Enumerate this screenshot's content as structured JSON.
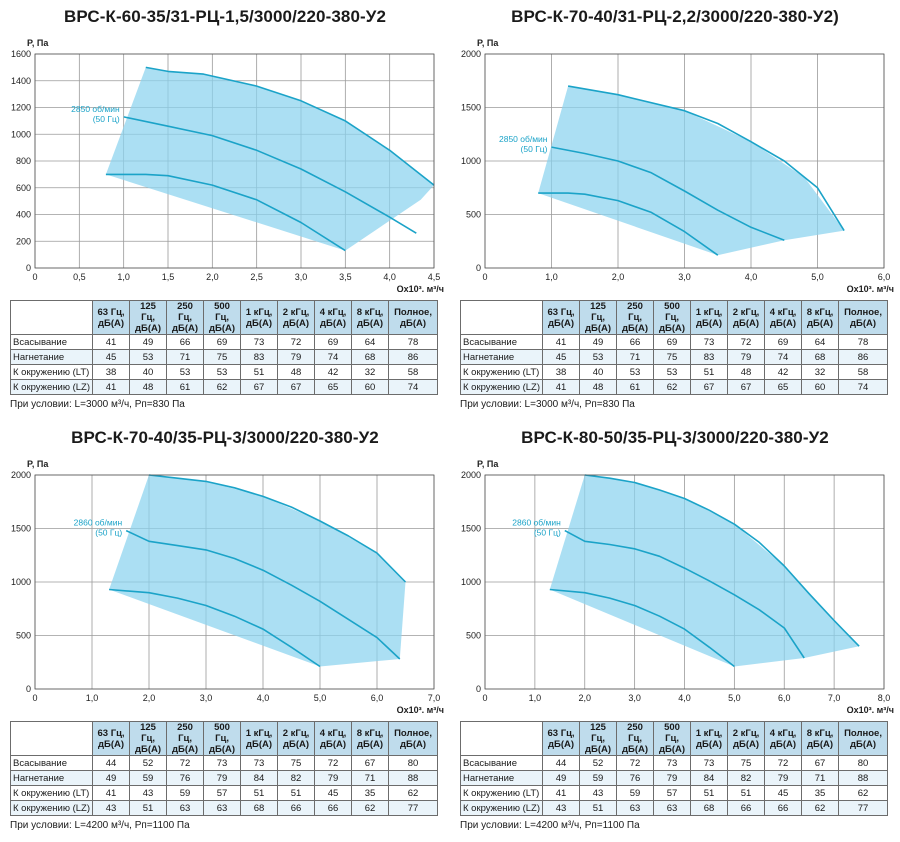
{
  "colors": {
    "area": "#8ad3ee",
    "curve": "#1ba3c8",
    "grid": "#9a9a9a",
    "header": "#bfdcec"
  },
  "table_columns": [
    "63 Гц, дБ(А)",
    "125 Гц, дБ(А)",
    "250 Гц, дБ(А)",
    "500 Гц, дБ(А)",
    "1 кГц, дБ(А)",
    "2 кГц, дБ(А)",
    "4 кГц, дБ(А)",
    "8 кГц, дБ(А)",
    "Полное, дБ(А)"
  ],
  "table_rows": [
    "Всасывание",
    "Нагнетание",
    "К окружению (LT)",
    "К окружению (LZ)"
  ],
  "chart_data": [
    {
      "type": "line",
      "title": "ВРС-К-60-35/31-РЦ-1,5/3000/220-380-У2",
      "ylabel": "P, Па",
      "xlabel": "Qx10³, м³/ч",
      "xlim": [
        0,
        4.5
      ],
      "ylim": [
        0,
        1600
      ],
      "xticks": [
        "0",
        "0,5",
        "1,0",
        "1,5",
        "2,0",
        "2,5",
        "3,0",
        "3,5",
        "4,0",
        "4,5"
      ],
      "yticks": [
        "0",
        "200",
        "400",
        "600",
        "800",
        "1000",
        "1200",
        "1400",
        "1600"
      ],
      "speed_label": [
        "2850 об/мин",
        "(50 Гц)"
      ],
      "grid": true,
      "region": [
        [
          0.8,
          700
        ],
        [
          1.25,
          1500
        ],
        [
          1.5,
          1470
        ],
        [
          1.9,
          1450
        ],
        [
          2.5,
          1360
        ],
        [
          3.0,
          1250
        ],
        [
          3.5,
          1100
        ],
        [
          4.0,
          880
        ],
        [
          4.5,
          620
        ],
        [
          4.35,
          510
        ],
        [
          3.5,
          130
        ]
      ],
      "series": [
        {
          "points": [
            [
              1.25,
              1500
            ],
            [
              1.5,
              1470
            ],
            [
              1.9,
              1450
            ],
            [
              2.5,
              1360
            ],
            [
              3.0,
              1250
            ],
            [
              3.5,
              1100
            ],
            [
              4.0,
              880
            ],
            [
              4.5,
              620
            ]
          ]
        },
        {
          "points": [
            [
              1.0,
              1130
            ],
            [
              1.5,
              1060
            ],
            [
              2.0,
              990
            ],
            [
              2.5,
              880
            ],
            [
              3.0,
              740
            ],
            [
              3.5,
              570
            ],
            [
              4.0,
              380
            ],
            [
              4.3,
              260
            ]
          ]
        },
        {
          "points": [
            [
              0.8,
              700
            ],
            [
              1.25,
              700
            ],
            [
              1.5,
              690
            ],
            [
              2.0,
              620
            ],
            [
              2.5,
              510
            ],
            [
              3.0,
              340
            ],
            [
              3.5,
              130
            ]
          ]
        }
      ],
      "table": [
        [
          "41",
          "49",
          "66",
          "69",
          "73",
          "72",
          "69",
          "64",
          "78"
        ],
        [
          "45",
          "53",
          "71",
          "75",
          "83",
          "79",
          "74",
          "68",
          "86"
        ],
        [
          "38",
          "40",
          "53",
          "53",
          "51",
          "48",
          "42",
          "32",
          "58"
        ],
        [
          "41",
          "48",
          "61",
          "62",
          "67",
          "67",
          "65",
          "60",
          "74"
        ]
      ],
      "condition": "При условии: L=3000 м³/ч, Рп=830 Па"
    },
    {
      "type": "line",
      "title": "ВРС-К-70-40/31-РЦ-2,2/3000/220-380-У2)",
      "ylabel": "P, Па",
      "xlabel": "Qx10³, м³/ч",
      "xlim": [
        0,
        6.0
      ],
      "ylim": [
        0,
        2000
      ],
      "xticks": [
        "0",
        "1,0",
        "2,0",
        "3,0",
        "4,0",
        "5,0",
        "6,0"
      ],
      "yticks": [
        "0",
        "500",
        "1000",
        "1500",
        "2000"
      ],
      "speed_label": [
        "2850 об/мин",
        "(50 Гц)"
      ],
      "grid": true,
      "region": [
        [
          0.8,
          700
        ],
        [
          1.25,
          1700
        ],
        [
          2.0,
          1620
        ],
        [
          3.0,
          1470
        ],
        [
          4.0,
          1180
        ],
        [
          4.8,
          850
        ],
        [
          5.4,
          350
        ],
        [
          4.5,
          260
        ],
        [
          3.5,
          120
        ]
      ],
      "series": [
        {
          "points": [
            [
              1.25,
              1700
            ],
            [
              2.0,
              1620
            ],
            [
              3.0,
              1470
            ],
            [
              3.5,
              1350
            ],
            [
              4.0,
              1180
            ],
            [
              4.5,
              1000
            ],
            [
              5.0,
              750
            ],
            [
              5.4,
              350
            ]
          ]
        },
        {
          "points": [
            [
              1.0,
              1130
            ],
            [
              1.5,
              1070
            ],
            [
              2.0,
              1000
            ],
            [
              2.5,
              890
            ],
            [
              3.0,
              720
            ],
            [
              3.5,
              540
            ],
            [
              4.0,
              380
            ],
            [
              4.5,
              260
            ]
          ]
        },
        {
          "points": [
            [
              0.8,
              700
            ],
            [
              1.25,
              700
            ],
            [
              1.5,
              690
            ],
            [
              2.0,
              630
            ],
            [
              2.5,
              520
            ],
            [
              3.0,
              340
            ],
            [
              3.5,
              120
            ]
          ]
        }
      ],
      "table": [
        [
          "41",
          "49",
          "66",
          "69",
          "73",
          "72",
          "69",
          "64",
          "78"
        ],
        [
          "45",
          "53",
          "71",
          "75",
          "83",
          "79",
          "74",
          "68",
          "86"
        ],
        [
          "38",
          "40",
          "53",
          "53",
          "51",
          "48",
          "42",
          "32",
          "58"
        ],
        [
          "41",
          "48",
          "61",
          "62",
          "67",
          "67",
          "65",
          "60",
          "74"
        ]
      ],
      "condition": "При условии: L=3000 м³/ч, Рп=830 Па"
    },
    {
      "type": "line",
      "title": "ВРС-К-70-40/35-РЦ-3/3000/220-380-У2",
      "ylabel": "P, Па",
      "xlabel": "Qx10³, м³/ч",
      "xlim": [
        0,
        7.0
      ],
      "ylim": [
        0,
        2000
      ],
      "xticks": [
        "0",
        "1,0",
        "2,0",
        "3,0",
        "4,0",
        "5,0",
        "6,0",
        "7,0"
      ],
      "yticks": [
        "0",
        "500",
        "1000",
        "1500",
        "2000"
      ],
      "speed_label": [
        "2860 об/мин",
        "(50 Гц)"
      ],
      "grid": true,
      "region": [
        [
          1.3,
          930
        ],
        [
          2.0,
          2000
        ],
        [
          3.0,
          1940
        ],
        [
          4.0,
          1800
        ],
        [
          5.0,
          1570
        ],
        [
          6.0,
          1270
        ],
        [
          6.5,
          1000
        ],
        [
          6.4,
          280
        ],
        [
          5.0,
          210
        ]
      ],
      "series": [
        {
          "points": [
            [
              2.0,
              2000
            ],
            [
              2.5,
              1970
            ],
            [
              3.0,
              1940
            ],
            [
              3.5,
              1880
            ],
            [
              4.0,
              1800
            ],
            [
              4.5,
              1700
            ],
            [
              5.0,
              1570
            ],
            [
              5.5,
              1430
            ],
            [
              6.0,
              1270
            ],
            [
              6.5,
              1000
            ]
          ]
        },
        {
          "points": [
            [
              1.6,
              1480
            ],
            [
              2.0,
              1380
            ],
            [
              2.5,
              1340
            ],
            [
              3.0,
              1300
            ],
            [
              3.5,
              1220
            ],
            [
              4.0,
              1110
            ],
            [
              4.5,
              970
            ],
            [
              5.0,
              820
            ],
            [
              5.5,
              650
            ],
            [
              6.0,
              480
            ],
            [
              6.4,
              280
            ]
          ]
        },
        {
          "points": [
            [
              1.3,
              930
            ],
            [
              2.0,
              900
            ],
            [
              2.5,
              850
            ],
            [
              3.0,
              780
            ],
            [
              3.5,
              680
            ],
            [
              4.0,
              560
            ],
            [
              4.5,
              390
            ],
            [
              5.0,
              210
            ]
          ]
        }
      ],
      "table": [
        [
          "44",
          "52",
          "72",
          "73",
          "73",
          "75",
          "72",
          "67",
          "80"
        ],
        [
          "49",
          "59",
          "76",
          "79",
          "84",
          "82",
          "79",
          "71",
          "88"
        ],
        [
          "41",
          "43",
          "59",
          "57",
          "51",
          "51",
          "45",
          "35",
          "62"
        ],
        [
          "43",
          "51",
          "63",
          "63",
          "68",
          "66",
          "66",
          "62",
          "77"
        ]
      ],
      "condition": "При условии: L=4200 м³/ч, Рп=1100 Па"
    },
    {
      "type": "line",
      "title": "ВРС-К-80-50/35-РЦ-3/3000/220-380-У2",
      "ylabel": "P, Па",
      "xlabel": "Qx10³, м³/ч",
      "xlim": [
        0,
        8.0
      ],
      "ylim": [
        0,
        2000
      ],
      "xticks": [
        "0",
        "1,0",
        "2,0",
        "3,0",
        "4,0",
        "5,0",
        "6,0",
        "7,0",
        "8,0"
      ],
      "yticks": [
        "0",
        "500",
        "1000",
        "1500",
        "2000"
      ],
      "speed_label": [
        "2860 об/мин",
        "(50 Гц)"
      ],
      "grid": true,
      "region": [
        [
          1.3,
          930
        ],
        [
          2.0,
          2000
        ],
        [
          3.0,
          1930
        ],
        [
          4.0,
          1780
        ],
        [
          5.0,
          1540
        ],
        [
          6.0,
          1150
        ],
        [
          7.5,
          400
        ],
        [
          6.4,
          290
        ],
        [
          5.0,
          210
        ]
      ],
      "series": [
        {
          "points": [
            [
              2.0,
              2000
            ],
            [
              2.5,
              1970
            ],
            [
              3.0,
              1930
            ],
            [
              3.5,
              1860
            ],
            [
              4.0,
              1780
            ],
            [
              4.5,
              1670
            ],
            [
              5.0,
              1540
            ],
            [
              5.5,
              1370
            ],
            [
              6.0,
              1150
            ],
            [
              6.5,
              890
            ],
            [
              7.0,
              640
            ],
            [
              7.5,
              400
            ]
          ]
        },
        {
          "points": [
            [
              1.6,
              1480
            ],
            [
              2.0,
              1380
            ],
            [
              2.5,
              1350
            ],
            [
              3.0,
              1310
            ],
            [
              3.5,
              1240
            ],
            [
              4.0,
              1130
            ],
            [
              4.5,
              1010
            ],
            [
              5.0,
              880
            ],
            [
              5.5,
              740
            ],
            [
              6.0,
              570
            ],
            [
              6.4,
              290
            ]
          ]
        },
        {
          "points": [
            [
              1.3,
              930
            ],
            [
              2.0,
              900
            ],
            [
              2.5,
              850
            ],
            [
              3.0,
              780
            ],
            [
              3.5,
              680
            ],
            [
              4.0,
              560
            ],
            [
              4.5,
              390
            ],
            [
              5.0,
              210
            ]
          ]
        }
      ],
      "table": [
        [
          "44",
          "52",
          "72",
          "73",
          "73",
          "75",
          "72",
          "67",
          "80"
        ],
        [
          "49",
          "59",
          "76",
          "79",
          "84",
          "82",
          "79",
          "71",
          "88"
        ],
        [
          "41",
          "43",
          "59",
          "57",
          "51",
          "51",
          "45",
          "35",
          "62"
        ],
        [
          "43",
          "51",
          "63",
          "63",
          "68",
          "66",
          "66",
          "62",
          "77"
        ]
      ],
      "condition": "При условии: L=4200 м³/ч, Рп=1100 Па"
    }
  ]
}
